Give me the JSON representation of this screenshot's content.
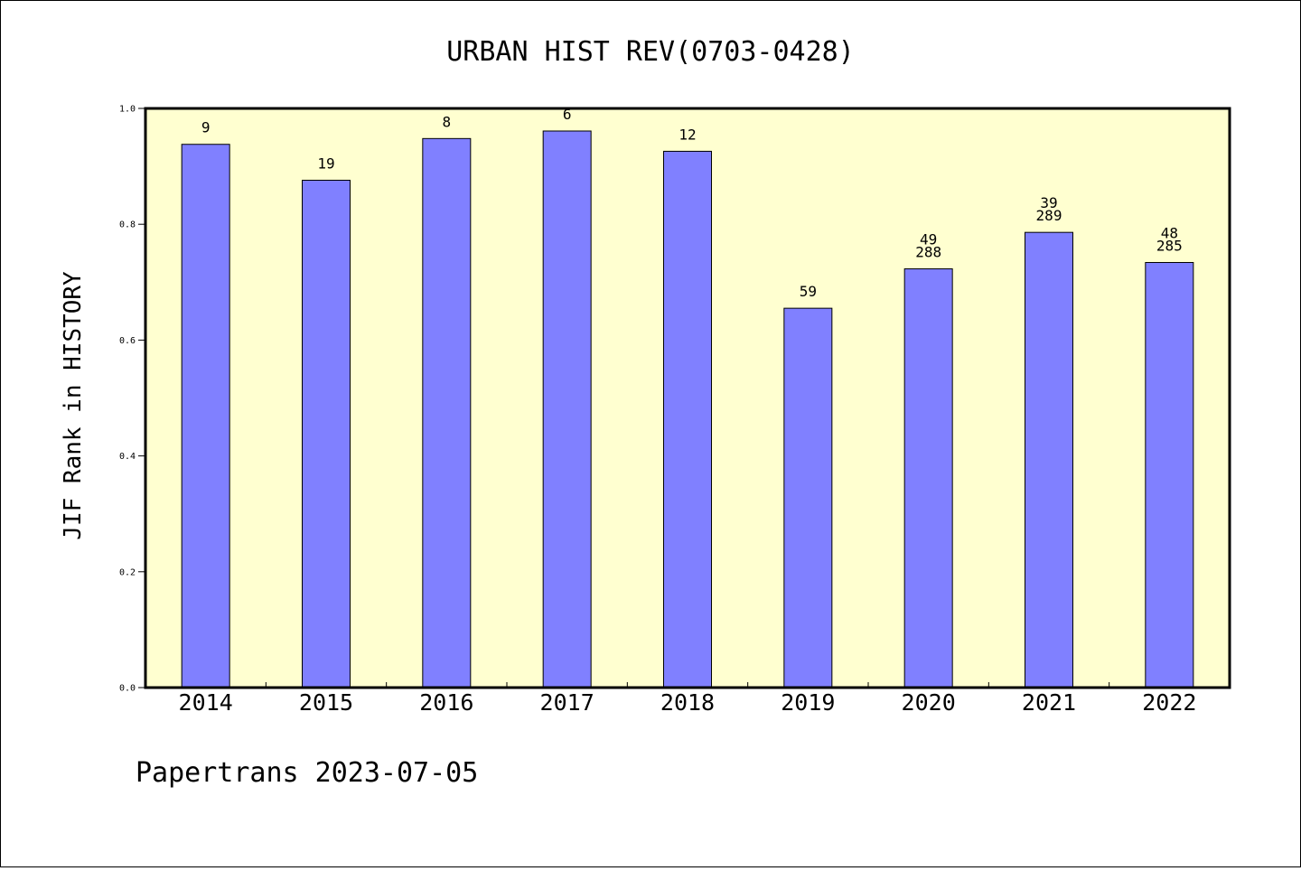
{
  "chart_data": {
    "type": "bar",
    "title": "URBAN HIST REV(0703-0428)",
    "xlabel": "",
    "ylabel": "JIF Rank in HISTORY",
    "ylim": [
      0,
      1.0
    ],
    "yticks": [
      "0.0",
      "0.2",
      "0.4",
      "0.6",
      "0.8",
      "1.0"
    ],
    "grid": false,
    "categories": [
      "2014",
      "2015",
      "2016",
      "2017",
      "2018",
      "2019",
      "2020",
      "2021",
      "2022"
    ],
    "values": [
      0.938,
      0.876,
      0.948,
      0.961,
      0.926,
      0.655,
      0.723,
      0.786,
      0.734
    ],
    "annotations": [
      [
        "9"
      ],
      [
        "19"
      ],
      [
        "8"
      ],
      [
        "6"
      ],
      [
        "12"
      ],
      [
        "59"
      ],
      [
        "49",
        "288"
      ],
      [
        "39",
        "289"
      ],
      [
        "48",
        "285"
      ]
    ],
    "colors": {
      "bar": "#8080ff",
      "plot_background": "#ffffd0",
      "axis": "#000000"
    }
  },
  "footer": "Papertrans 2023-07-05"
}
